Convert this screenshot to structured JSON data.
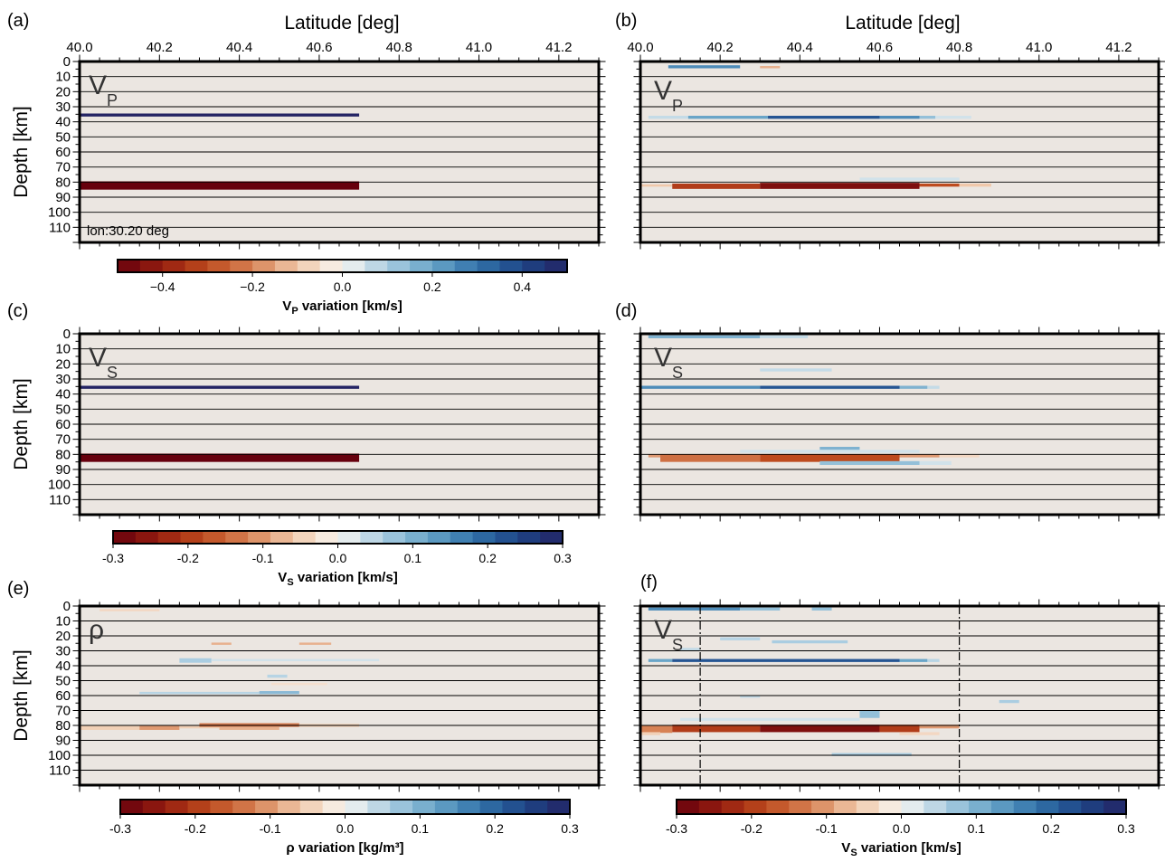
{
  "figure": {
    "x_axis_title": "Latitude [deg]",
    "y_axis_title": "Depth [km]",
    "background_color": "#ebe6e1"
  },
  "chart_data": [
    {
      "id": "a",
      "type": "heatmap",
      "panel_label": "(a)",
      "variable": "V",
      "variable_sub": "P",
      "annotation": "lon:30.20 deg",
      "xlabel": "Latitude [deg]",
      "ylabel": "Depth [km]",
      "xlim": [
        40.0,
        41.3
      ],
      "ylim": [
        0,
        120
      ],
      "x_ticks": [
        "40.0",
        "40.2",
        "40.4",
        "40.6",
        "40.8",
        "41.0",
        "41.2"
      ],
      "y_ticks": [
        "0",
        "10",
        "20",
        "30",
        "40",
        "50",
        "60",
        "70",
        "80",
        "90",
        "100",
        "110"
      ],
      "show_x_top_labels": true,
      "show_y_labels": true,
      "anomalies": [
        {
          "lat0": 40.0,
          "lat1": 40.7,
          "d0": 34.5,
          "d1": 36.5,
          "v": 0.5
        },
        {
          "lat0": 40.0,
          "lat1": 40.7,
          "d0": 79.5,
          "d1": 85.0,
          "v": -0.5
        }
      ],
      "dash_lines": []
    },
    {
      "id": "b",
      "type": "heatmap",
      "panel_label": "(b)",
      "variable": "V",
      "variable_sub": "P",
      "xlabel": "Latitude [deg]",
      "xlim": [
        40.0,
        41.3
      ],
      "ylim": [
        0,
        120
      ],
      "x_ticks": [
        "40.0",
        "40.2",
        "40.4",
        "40.6",
        "40.8",
        "41.0",
        "41.2"
      ],
      "show_x_top_labels": true,
      "show_y_labels": false,
      "anomalies": [
        {
          "lat0": 40.07,
          "lat1": 40.25,
          "d0": 2.5,
          "d1": 4.5,
          "v": 0.15
        },
        {
          "lat0": 40.3,
          "lat1": 40.35,
          "d0": 3,
          "d1": 4.5,
          "v": -0.08
        },
        {
          "lat0": 40.02,
          "lat1": 40.12,
          "d0": 36,
          "d1": 38,
          "v": 0.04
        },
        {
          "lat0": 40.12,
          "lat1": 40.32,
          "d0": 36,
          "d1": 38,
          "v": 0.12
        },
        {
          "lat0": 40.32,
          "lat1": 40.6,
          "d0": 36,
          "d1": 38,
          "v": 0.22
        },
        {
          "lat0": 40.6,
          "lat1": 40.7,
          "d0": 36,
          "d1": 38,
          "v": 0.15
        },
        {
          "lat0": 40.7,
          "lat1": 40.74,
          "d0": 36,
          "d1": 38,
          "v": 0.08
        },
        {
          "lat0": 40.74,
          "lat1": 40.83,
          "d0": 36,
          "d1": 38,
          "v": 0.03
        },
        {
          "lat0": 40.0,
          "lat1": 40.08,
          "d0": 81.5,
          "d1": 83,
          "v": -0.06
        },
        {
          "lat0": 40.08,
          "lat1": 40.3,
          "d0": 81,
          "d1": 84.5,
          "v": -0.2
        },
        {
          "lat0": 40.3,
          "lat1": 40.7,
          "d0": 80.5,
          "d1": 84.5,
          "v": -0.27
        },
        {
          "lat0": 40.7,
          "lat1": 40.8,
          "d0": 81,
          "d1": 83,
          "v": -0.18
        },
        {
          "lat0": 40.8,
          "lat1": 40.88,
          "d0": 81,
          "d1": 83,
          "v": -0.06
        },
        {
          "lat0": 40.55,
          "lat1": 40.8,
          "d0": 77,
          "d1": 79,
          "v": 0.03
        }
      ],
      "dash_lines": []
    },
    {
      "id": "c",
      "type": "heatmap",
      "panel_label": "(c)",
      "variable": "V",
      "variable_sub": "S",
      "ylabel": "Depth [km]",
      "xlim": [
        40.0,
        41.3
      ],
      "ylim": [
        0,
        120
      ],
      "y_ticks": [
        "0",
        "10",
        "20",
        "30",
        "40",
        "50",
        "60",
        "70",
        "80",
        "90",
        "100",
        "110"
      ],
      "show_x_top_labels": false,
      "show_y_labels": true,
      "anomalies": [
        {
          "lat0": 40.0,
          "lat1": 40.7,
          "d0": 34.5,
          "d1": 36.5,
          "v": 0.3
        },
        {
          "lat0": 40.0,
          "lat1": 40.7,
          "d0": 79.5,
          "d1": 85.0,
          "v": -0.3
        }
      ],
      "dash_lines": []
    },
    {
      "id": "d",
      "type": "heatmap",
      "panel_label": "(d)",
      "variable": "V",
      "variable_sub": "S",
      "xlim": [
        40.0,
        41.3
      ],
      "ylim": [
        0,
        120
      ],
      "show_x_top_labels": false,
      "show_y_labels": false,
      "anomalies": [
        {
          "lat0": 40.02,
          "lat1": 40.3,
          "d0": 1,
          "d1": 3,
          "v": 0.1
        },
        {
          "lat0": 40.3,
          "lat1": 40.42,
          "d0": 1,
          "d1": 3,
          "v": 0.04
        },
        {
          "lat0": 40.3,
          "lat1": 40.48,
          "d0": 23,
          "d1": 25,
          "v": 0.04
        },
        {
          "lat0": 40.0,
          "lat1": 40.3,
          "d0": 34.5,
          "d1": 36.5,
          "v": 0.15
        },
        {
          "lat0": 40.3,
          "lat1": 40.65,
          "d0": 34.5,
          "d1": 36.5,
          "v": 0.22
        },
        {
          "lat0": 40.65,
          "lat1": 40.72,
          "d0": 34.5,
          "d1": 36.5,
          "v": 0.1
        },
        {
          "lat0": 40.72,
          "lat1": 40.75,
          "d0": 34.5,
          "d1": 36.5,
          "v": 0.04
        },
        {
          "lat0": 40.45,
          "lat1": 40.55,
          "d0": 75,
          "d1": 77,
          "v": 0.1
        },
        {
          "lat0": 40.25,
          "lat1": 40.7,
          "d0": 77,
          "d1": 79,
          "v": 0.03
        },
        {
          "lat0": 40.02,
          "lat1": 40.12,
          "d0": 80,
          "d1": 82,
          "v": -0.1
        },
        {
          "lat0": 40.05,
          "lat1": 40.3,
          "d0": 80,
          "d1": 85,
          "v": -0.14
        },
        {
          "lat0": 40.3,
          "lat1": 40.65,
          "d0": 80,
          "d1": 85,
          "v": -0.18
        },
        {
          "lat0": 40.65,
          "lat1": 40.75,
          "d0": 80,
          "d1": 82,
          "v": -0.1
        },
        {
          "lat0": 40.75,
          "lat1": 40.85,
          "d0": 80,
          "d1": 82,
          "v": -0.04
        },
        {
          "lat0": 40.45,
          "lat1": 40.7,
          "d0": 84.5,
          "d1": 87,
          "v": 0.08
        },
        {
          "lat0": 40.7,
          "lat1": 40.78,
          "d0": 84.5,
          "d1": 87,
          "v": 0.03
        }
      ],
      "dash_lines": []
    },
    {
      "id": "e",
      "type": "heatmap",
      "panel_label": "(e)",
      "variable": "ρ",
      "variable_sub": "",
      "ylabel": "Depth [km]",
      "xlim": [
        40.0,
        41.3
      ],
      "ylim": [
        0,
        120
      ],
      "y_ticks": [
        "0",
        "10",
        "20",
        "30",
        "40",
        "50",
        "60",
        "70",
        "80",
        "90",
        "100",
        "110"
      ],
      "show_x_top_labels": false,
      "show_y_labels": true,
      "anomalies": [
        {
          "lat0": 40.05,
          "lat1": 40.2,
          "d0": 2,
          "d1": 3.5,
          "v": -0.04
        },
        {
          "lat0": 40.33,
          "lat1": 40.38,
          "d0": 24.5,
          "d1": 26,
          "v": -0.08
        },
        {
          "lat0": 40.55,
          "lat1": 40.63,
          "d0": 24.5,
          "d1": 26,
          "v": -0.08
        },
        {
          "lat0": 40.25,
          "lat1": 40.33,
          "d0": 35,
          "d1": 38,
          "v": 0.06
        },
        {
          "lat0": 40.33,
          "lat1": 40.75,
          "d0": 35.5,
          "d1": 37,
          "v": 0.03
        },
        {
          "lat0": 40.47,
          "lat1": 40.52,
          "d0": 46,
          "d1": 48,
          "v": 0.05
        },
        {
          "lat0": 40.48,
          "lat1": 40.62,
          "d0": 51.5,
          "d1": 53,
          "v": -0.03
        },
        {
          "lat0": 40.15,
          "lat1": 40.45,
          "d0": 57.5,
          "d1": 59,
          "v": 0.05
        },
        {
          "lat0": 40.45,
          "lat1": 40.55,
          "d0": 57,
          "d1": 59,
          "v": 0.09
        },
        {
          "lat0": 40.0,
          "lat1": 40.15,
          "d0": 80,
          "d1": 83,
          "v": -0.05
        },
        {
          "lat0": 40.15,
          "lat1": 40.25,
          "d0": 80,
          "d1": 83,
          "v": -0.1
        },
        {
          "lat0": 40.25,
          "lat1": 40.35,
          "d0": 80,
          "d1": 82,
          "v": -0.05
        },
        {
          "lat0": 40.3,
          "lat1": 40.55,
          "d0": 78.5,
          "d1": 81,
          "v": -0.13
        },
        {
          "lat0": 40.35,
          "lat1": 40.5,
          "d0": 81,
          "d1": 83,
          "v": -0.08
        },
        {
          "lat0": 40.55,
          "lat1": 40.7,
          "d0": 79,
          "d1": 81,
          "v": -0.05
        }
      ],
      "dash_lines": []
    },
    {
      "id": "f",
      "type": "heatmap",
      "panel_label": "(f)",
      "variable": "V",
      "variable_sub": "S",
      "xlim": [
        40.0,
        41.3
      ],
      "ylim": [
        0,
        120
      ],
      "show_x_top_labels": false,
      "show_y_labels": false,
      "anomalies": [
        {
          "lat0": 40.02,
          "lat1": 40.25,
          "d0": 1,
          "d1": 3,
          "v": 0.15
        },
        {
          "lat0": 40.25,
          "lat1": 40.35,
          "d0": 1,
          "d1": 3,
          "v": 0.08
        },
        {
          "lat0": 40.43,
          "lat1": 40.48,
          "d0": 1,
          "d1": 3,
          "v": 0.08
        },
        {
          "lat0": 40.2,
          "lat1": 40.3,
          "d0": 21,
          "d1": 23,
          "v": 0.05
        },
        {
          "lat0": 40.33,
          "lat1": 40.52,
          "d0": 23,
          "d1": 25,
          "v": 0.06
        },
        {
          "lat0": 40.1,
          "lat1": 40.15,
          "d0": 28,
          "d1": 30,
          "v": 0.04
        },
        {
          "lat0": 40.02,
          "lat1": 40.08,
          "d0": 35.5,
          "d1": 37.5,
          "v": 0.12
        },
        {
          "lat0": 40.08,
          "lat1": 40.65,
          "d0": 35.5,
          "d1": 37.5,
          "v": 0.22
        },
        {
          "lat0": 40.65,
          "lat1": 40.72,
          "d0": 35.5,
          "d1": 37.5,
          "v": 0.12
        },
        {
          "lat0": 40.72,
          "lat1": 40.75,
          "d0": 35.5,
          "d1": 37.5,
          "v": 0.05
        },
        {
          "lat0": 40.25,
          "lat1": 40.3,
          "d0": 60,
          "d1": 61.5,
          "v": 0.04
        },
        {
          "lat0": 40.9,
          "lat1": 40.95,
          "d0": 63,
          "d1": 65,
          "v": 0.06
        },
        {
          "lat0": 40.55,
          "lat1": 40.6,
          "d0": 70,
          "d1": 75,
          "v": 0.08
        },
        {
          "lat0": 40.1,
          "lat1": 40.55,
          "d0": 75,
          "d1": 77,
          "v": 0.03
        },
        {
          "lat0": 40.0,
          "lat1": 40.08,
          "d0": 80,
          "d1": 85,
          "v": -0.12
        },
        {
          "lat0": 40.08,
          "lat1": 40.3,
          "d0": 79.5,
          "d1": 84.5,
          "v": -0.2
        },
        {
          "lat0": 40.3,
          "lat1": 40.6,
          "d0": 79.5,
          "d1": 84.5,
          "v": -0.27
        },
        {
          "lat0": 40.6,
          "lat1": 40.7,
          "d0": 79.5,
          "d1": 84.5,
          "v": -0.2
        },
        {
          "lat0": 40.7,
          "lat1": 40.8,
          "d0": 79.5,
          "d1": 82,
          "v": -0.1
        },
        {
          "lat0": 40.0,
          "lat1": 40.05,
          "d0": 84.5,
          "d1": 86.5,
          "v": -0.05
        },
        {
          "lat0": 40.65,
          "lat1": 40.75,
          "d0": 84.5,
          "d1": 86.5,
          "v": -0.04
        },
        {
          "lat0": 40.48,
          "lat1": 40.68,
          "d0": 98.5,
          "d1": 100.5,
          "v": 0.06
        }
      ],
      "dash_lines": [
        40.15,
        40.8
      ]
    }
  ],
  "colorbars": [
    {
      "id": "cb-a",
      "title_main": "V",
      "title_sub": "P",
      "title_rest": " variation [km/s]",
      "vmin": -0.5,
      "vmax": 0.5,
      "n": 20,
      "ticks": [
        -0.4,
        -0.2,
        0.0,
        0.2,
        0.4
      ],
      "tick_labels": [
        "−0.4",
        "−0.2",
        "0.0",
        "0.2",
        "0.4"
      ]
    },
    {
      "id": "cb-c",
      "title_main": "V",
      "title_sub": "S",
      "title_rest": " variation [km/s]",
      "vmin": -0.3,
      "vmax": 0.3,
      "n": 20,
      "ticks": [
        -0.3,
        -0.2,
        -0.1,
        0.0,
        0.1,
        0.2,
        0.3
      ],
      "tick_labels": [
        "-0.3",
        "-0.2",
        "-0.1",
        "0.0",
        "0.1",
        "0.2",
        "0.3"
      ]
    },
    {
      "id": "cb-e",
      "title_main": "ρ",
      "title_sub": "",
      "title_rest": " variation [kg/m³]",
      "vmin": -0.3,
      "vmax": 0.3,
      "n": 20,
      "ticks": [
        -0.3,
        -0.2,
        -0.1,
        0.0,
        0.1,
        0.2,
        0.3
      ],
      "tick_labels": [
        "-0.3",
        "-0.2",
        "-0.1",
        "0.0",
        "0.1",
        "0.2",
        "0.3"
      ]
    },
    {
      "id": "cb-f",
      "title_main": "V",
      "title_sub": "S",
      "title_rest": " variation [km/s]",
      "vmin": -0.3,
      "vmax": 0.3,
      "n": 20,
      "ticks": [
        -0.3,
        -0.2,
        -0.1,
        0.0,
        0.1,
        0.2,
        0.3
      ],
      "tick_labels": [
        "-0.3",
        "-0.2",
        "-0.1",
        "0.0",
        "0.1",
        "0.2",
        "0.3"
      ]
    }
  ]
}
